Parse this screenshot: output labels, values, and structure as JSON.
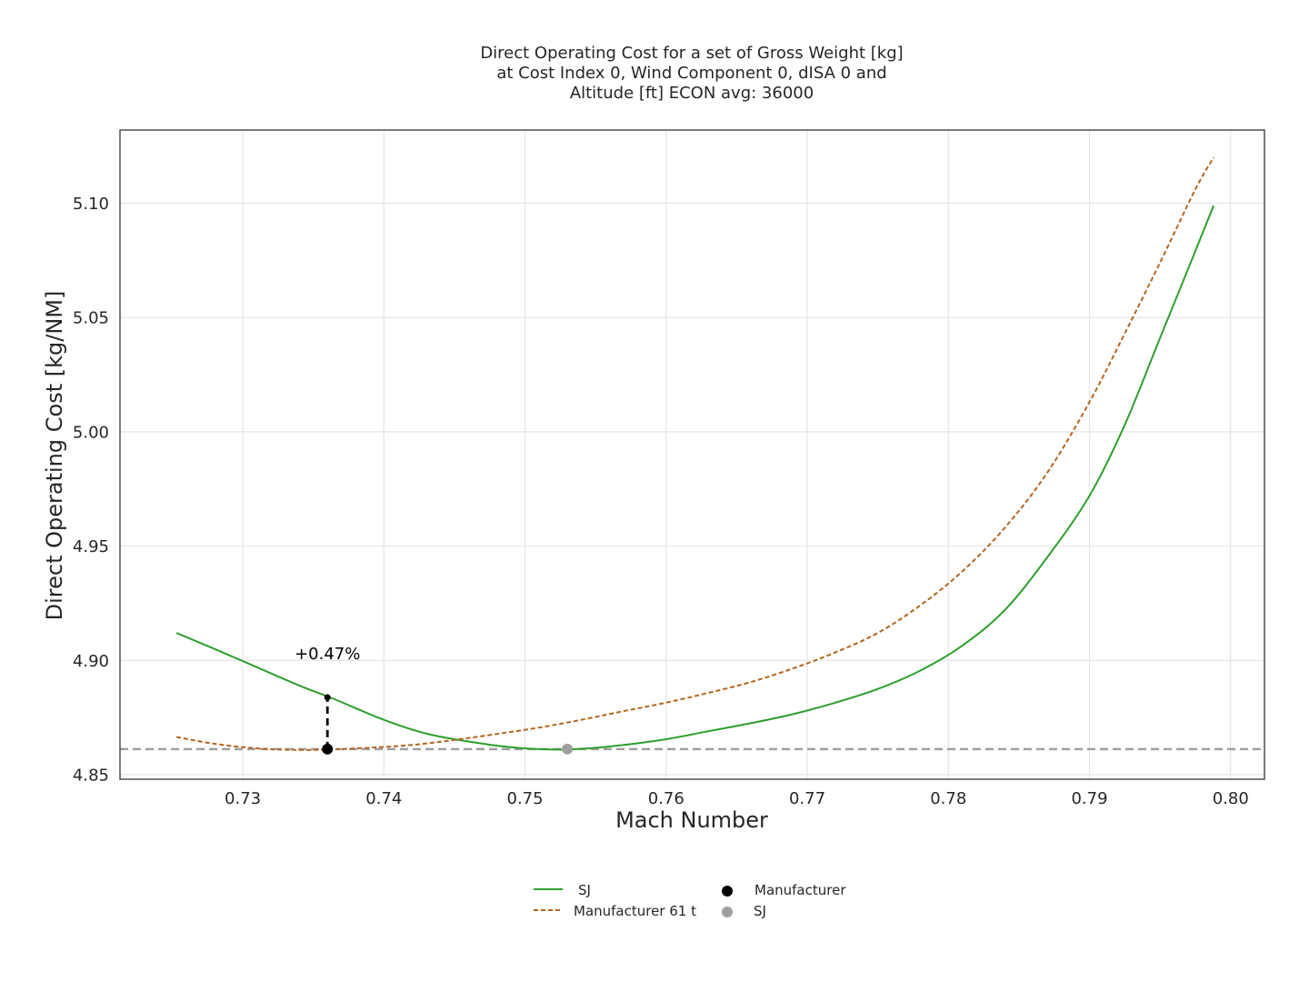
{
  "chart_data": {
    "type": "line",
    "title_lines": [
      "Direct Operating Cost for a set of Gross Weight [kg]",
      "at Cost Index 0,  Wind Component 0, dISA 0 and",
      "Altitude [ft] ECON avg: 36000"
    ],
    "xlabel": "Mach Number",
    "ylabel": "Direct Operating Cost [kg/NM]",
    "xlim": [
      0.7213,
      0.8024
    ],
    "ylim": [
      4.848,
      5.132
    ],
    "xticks": [
      "0.73",
      "0.74",
      "0.75",
      "0.76",
      "0.77",
      "0.78",
      "0.79",
      "0.80"
    ],
    "yticks": [
      "4.85",
      "4.90",
      "4.95",
      "5.00",
      "5.05",
      "5.10"
    ],
    "grid": true,
    "legend_position": "bottom-center",
    "series": [
      {
        "name": "SJ",
        "style": "solid",
        "color": "#2ca02c",
        "x": [
          0.7253,
          0.728,
          0.731,
          0.734,
          0.7365,
          0.74,
          0.743,
          0.746,
          0.749,
          0.752,
          0.7545,
          0.757,
          0.76,
          0.763,
          0.766,
          0.769,
          0.772,
          0.775,
          0.778,
          0.781,
          0.784,
          0.787,
          0.79,
          0.7925,
          0.795,
          0.7975,
          0.7988
        ],
        "y": [
          4.912,
          4.905,
          4.897,
          4.889,
          4.883,
          4.874,
          4.868,
          4.8645,
          4.862,
          4.861,
          4.8615,
          4.863,
          4.8655,
          4.869,
          4.8725,
          4.8765,
          4.8815,
          4.8875,
          4.8955,
          4.9065,
          4.922,
          4.945,
          4.972,
          5.003,
          5.041,
          5.079,
          5.099
        ]
      },
      {
        "name": "Manufacturer 61 t",
        "style": "dashed",
        "color": "#b5651d",
        "x": [
          0.7253,
          0.728,
          0.731,
          0.734,
          0.736,
          0.739,
          0.742,
          0.745,
          0.748,
          0.751,
          0.754,
          0.757,
          0.76,
          0.763,
          0.766,
          0.769,
          0.772,
          0.775,
          0.778,
          0.781,
          0.784,
          0.787,
          0.79,
          0.7925,
          0.795,
          0.7975,
          0.7988
        ],
        "y": [
          4.8665,
          4.8635,
          4.8615,
          4.8608,
          4.861,
          4.8618,
          4.863,
          4.8652,
          4.8678,
          4.8706,
          4.874,
          4.8778,
          4.8815,
          4.8858,
          4.8905,
          4.8965,
          4.9035,
          4.912,
          4.924,
          4.939,
          4.958,
          4.982,
          5.013,
          5.043,
          5.074,
          5.106,
          5.12
        ]
      }
    ],
    "points": [
      {
        "name": "Manufacturer",
        "x": 0.736,
        "y": 4.8612,
        "color": "#000000"
      },
      {
        "name": "SJ",
        "x": 0.753,
        "y": 4.8612,
        "color": "#a0a0a0"
      }
    ],
    "reference_line": {
      "y": 4.8612,
      "color": "#a0a0a0",
      "style": "dashed"
    },
    "difference_marker": {
      "x": 0.736,
      "y_low": 4.8612,
      "y_high": 4.8838,
      "label": "+0.47%"
    }
  }
}
